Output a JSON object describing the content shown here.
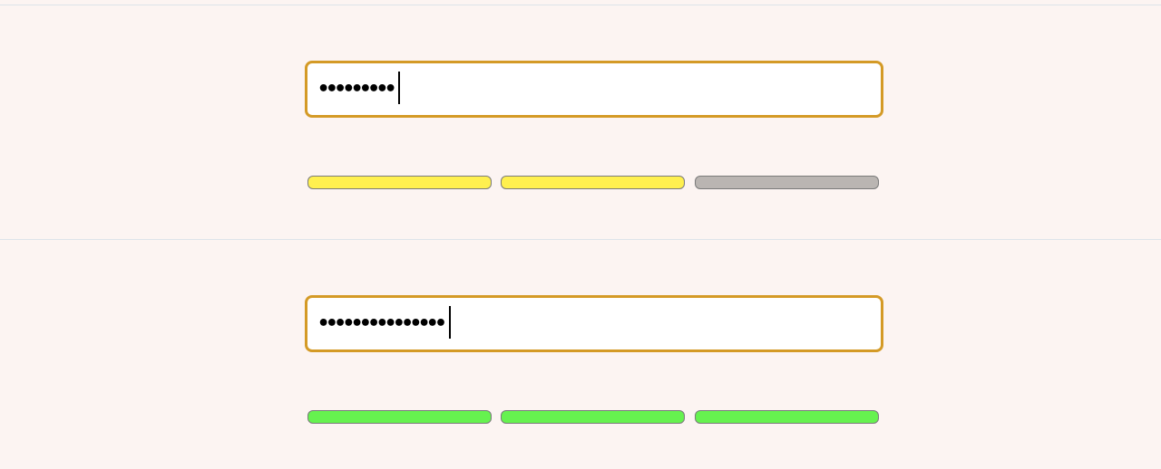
{
  "fields": [
    {
      "value": "•••••••••",
      "strength_level": 2,
      "strength_max": 3,
      "segments": [
        {
          "color": "#fff04f"
        },
        {
          "color": "#fff04f"
        },
        {
          "color": "#bab5b2"
        }
      ]
    },
    {
      "value": "•••••••••••••••",
      "strength_level": 3,
      "strength_max": 3,
      "segments": [
        {
          "color": "#66f24f"
        },
        {
          "color": "#66f24f"
        },
        {
          "color": "#66f24f"
        }
      ]
    }
  ],
  "colors": {
    "background": "#fcf4f2",
    "focus_border": "#d49a26",
    "divider": "#dde3ea"
  }
}
